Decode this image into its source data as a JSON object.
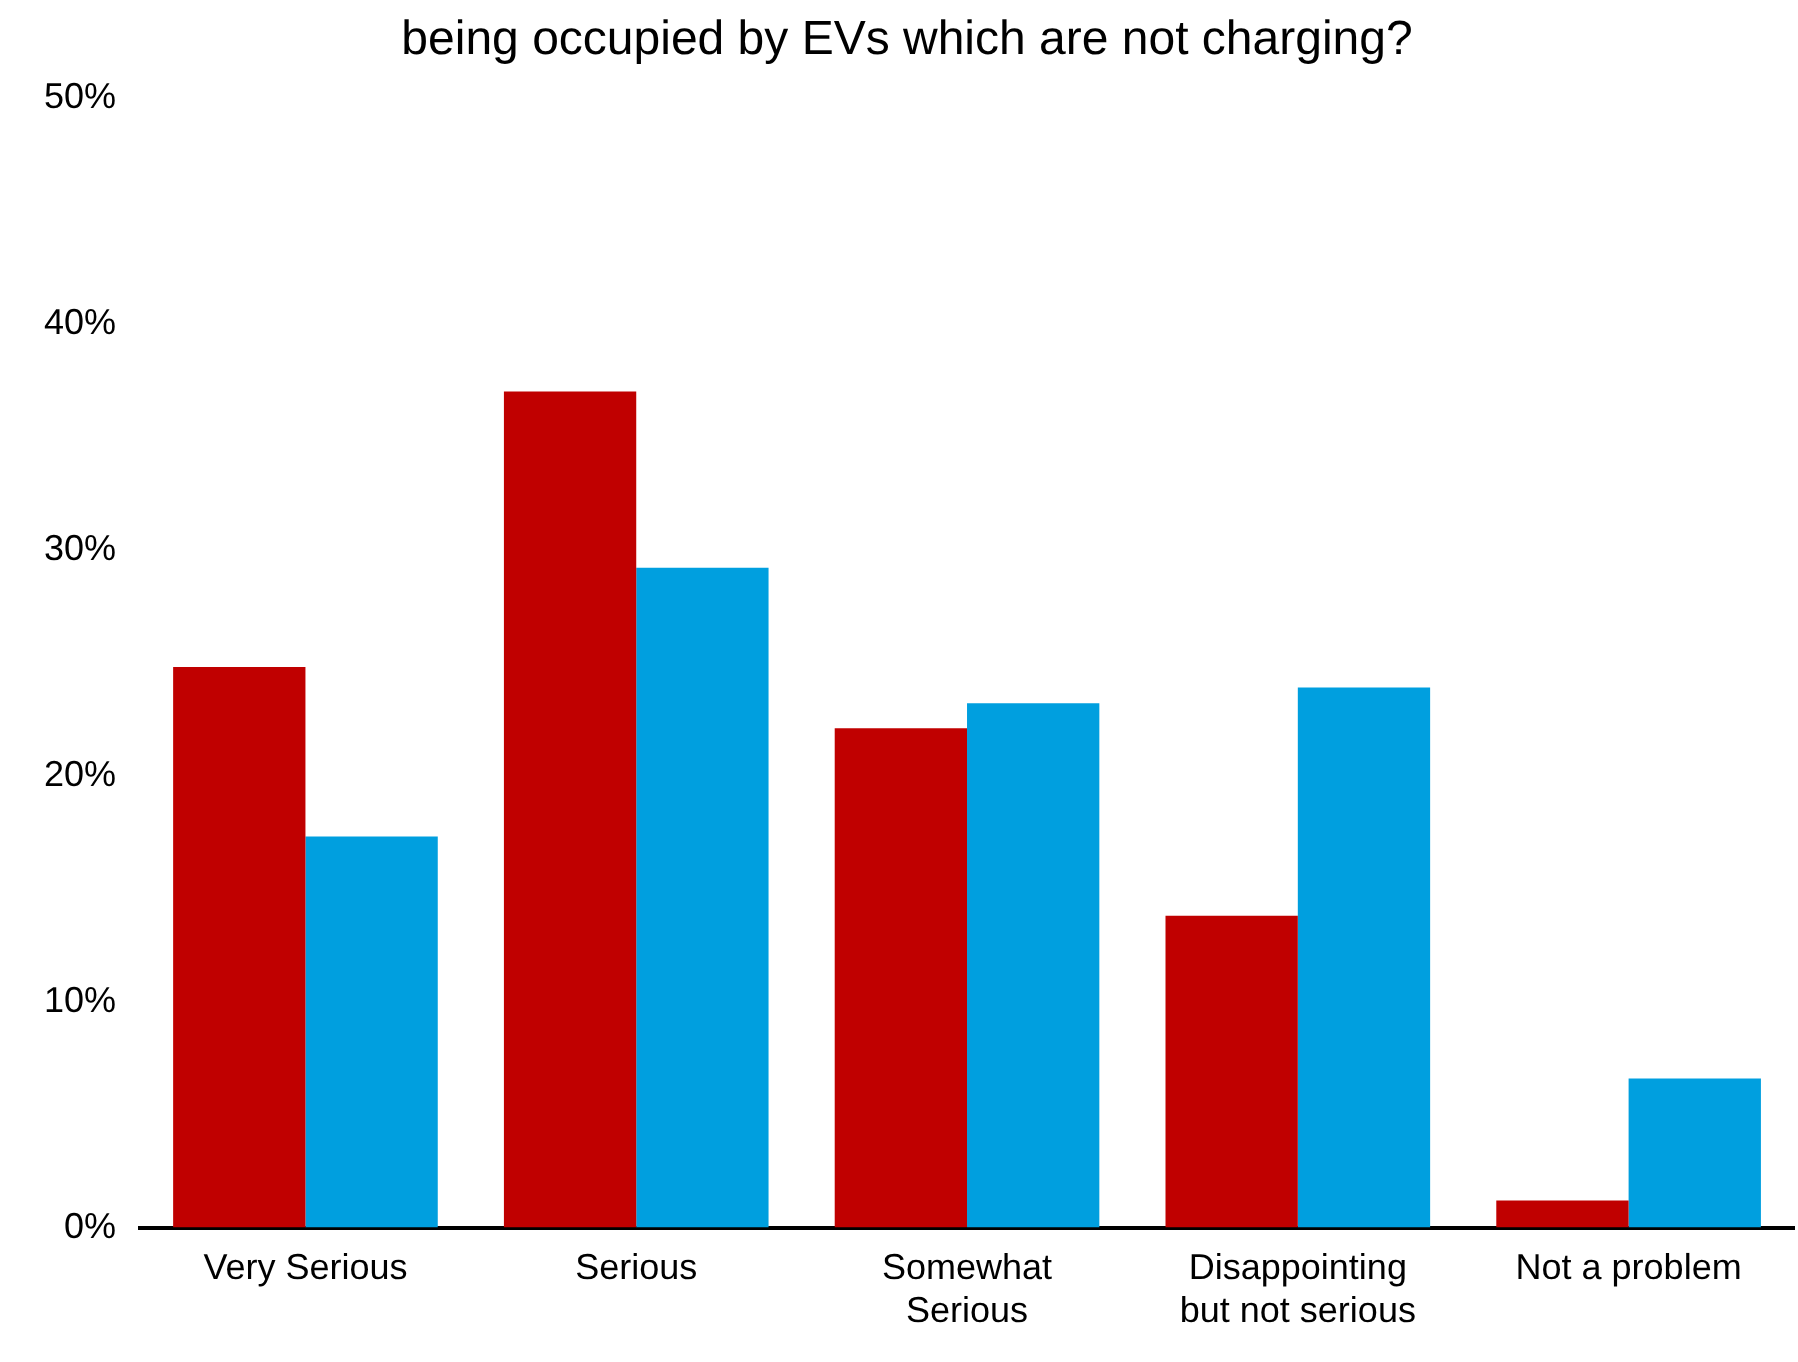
{
  "chart_data": {
    "type": "bar",
    "title": "being occupied by EVs which are not charging?",
    "categories": [
      "Very Serious",
      "Serious",
      "Somewhat Serious",
      "Disappointing but not serious",
      "Not a problem"
    ],
    "series": [
      {
        "color": "#c00000",
        "values": [
          24.8,
          37.0,
          22.1,
          13.8,
          1.2
        ]
      },
      {
        "color": "#009fdf",
        "values": [
          17.3,
          29.2,
          23.2,
          23.9,
          6.6
        ]
      }
    ],
    "ylim": [
      0,
      50
    ],
    "yticks": [
      {
        "value": 0,
        "label": "0%"
      },
      {
        "value": 10,
        "label": "10%"
      },
      {
        "value": 20,
        "label": "20%"
      },
      {
        "value": 30,
        "label": "30%"
      },
      {
        "value": 40,
        "label": "40%"
      },
      {
        "value": 50,
        "label": "50%"
      }
    ],
    "grid": false,
    "legend": false
  }
}
